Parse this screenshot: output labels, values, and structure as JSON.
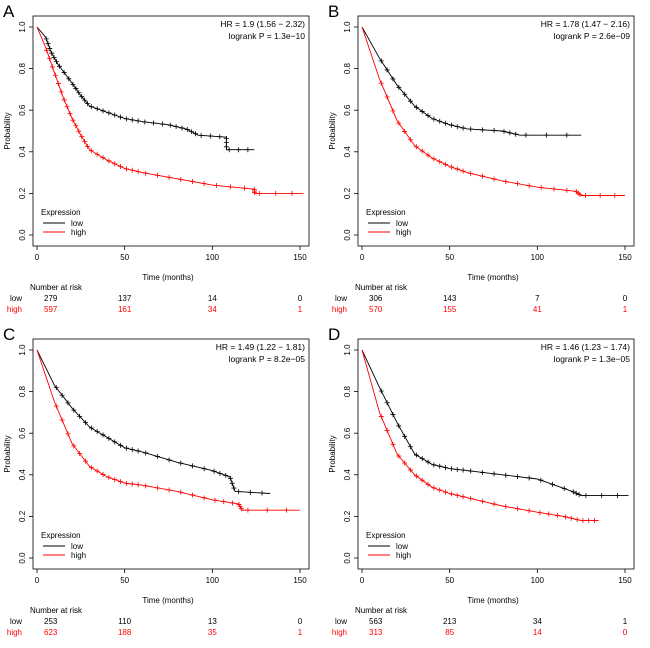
{
  "chart_data": [
    {
      "type": "line",
      "panel": "A",
      "hr_text": "HR = 1.9 (1.56 − 2.32)",
      "p_text": "logrank P = 1.3e−10",
      "xlabel": "Time (months)",
      "ylabel": "Probability",
      "xlim": [
        0,
        150
      ],
      "ylim": [
        0,
        1
      ],
      "xticks": [
        "0",
        "50",
        "100",
        "150"
      ],
      "yticks": [
        "0.0",
        "0.2",
        "0.4",
        "0.6",
        "0.8",
        "1.0"
      ],
      "legend": {
        "title": "Expression",
        "position": "bottom-left",
        "entries": [
          "low",
          "high"
        ]
      },
      "series": [
        {
          "name": "low",
          "color": "#000000",
          "points": [
            [
              0,
              1
            ],
            [
              5,
              0.95
            ],
            [
              8,
              0.88
            ],
            [
              12,
              0.82
            ],
            [
              20,
              0.73
            ],
            [
              25,
              0.67
            ],
            [
              30,
              0.62
            ],
            [
              40,
              0.59
            ],
            [
              50,
              0.56
            ],
            [
              60,
              0.545
            ],
            [
              75,
              0.53
            ],
            [
              85,
              0.51
            ],
            [
              92,
              0.48
            ],
            [
              108,
              0.47
            ],
            [
              108,
              0.41
            ],
            [
              124,
              0.41
            ]
          ]
        },
        {
          "name": "high",
          "color": "#ff0000",
          "points": [
            [
              0,
              1
            ],
            [
              5,
              0.9
            ],
            [
              10,
              0.78
            ],
            [
              15,
              0.66
            ],
            [
              20,
              0.56
            ],
            [
              25,
              0.48
            ],
            [
              30,
              0.41
            ],
            [
              40,
              0.36
            ],
            [
              50,
              0.32
            ],
            [
              60,
              0.3
            ],
            [
              80,
              0.27
            ],
            [
              100,
              0.24
            ],
            [
              124,
              0.22
            ],
            [
              124,
              0.2
            ],
            [
              152,
              0.2
            ]
          ]
        }
      ],
      "risk": {
        "title": "Number at risk",
        "low": [
          "279",
          "137",
          "14",
          "0"
        ],
        "high": [
          "597",
          "161",
          "34",
          "1"
        ]
      }
    },
    {
      "type": "line",
      "panel": "B",
      "hr_text": "HR = 1.78 (1.47 − 2.16)",
      "p_text": "logrank P = 2.6e−09",
      "xlabel": "Time (months)",
      "ylabel": "Probability",
      "xlim": [
        0,
        150
      ],
      "ylim": [
        0,
        1
      ],
      "xticks": [
        "0",
        "50",
        "100",
        "150"
      ],
      "yticks": [
        "0.0",
        "0.2",
        "0.4",
        "0.6",
        "0.8",
        "1.0"
      ],
      "legend": {
        "title": "Expression",
        "position": "bottom-left",
        "entries": [
          "low",
          "high"
        ]
      },
      "series": [
        {
          "name": "low",
          "color": "#000000",
          "points": [
            [
              0,
              1
            ],
            [
              10,
              0.85
            ],
            [
              20,
              0.72
            ],
            [
              30,
              0.62
            ],
            [
              40,
              0.56
            ],
            [
              50,
              0.53
            ],
            [
              60,
              0.51
            ],
            [
              80,
              0.5
            ],
            [
              90,
              0.48
            ],
            [
              125,
              0.48
            ]
          ]
        },
        {
          "name": "high",
          "color": "#ff0000",
          "points": [
            [
              0,
              1
            ],
            [
              10,
              0.75
            ],
            [
              20,
              0.55
            ],
            [
              30,
              0.43
            ],
            [
              40,
              0.37
            ],
            [
              50,
              0.33
            ],
            [
              60,
              0.3
            ],
            [
              80,
              0.26
            ],
            [
              100,
              0.23
            ],
            [
              122,
              0.21
            ],
            [
              125,
              0.19
            ],
            [
              150,
              0.19
            ]
          ]
        }
      ],
      "risk": {
        "title": "Number at risk",
        "low": [
          "306",
          "143",
          "7",
          "0"
        ],
        "high": [
          "570",
          "155",
          "41",
          "1"
        ]
      }
    },
    {
      "type": "line",
      "panel": "C",
      "hr_text": "HR = 1.49 (1.22 − 1.81)",
      "p_text": "logrank P = 8.2e−05",
      "xlabel": "Time (months)",
      "ylabel": "Probability",
      "xlim": [
        0,
        150
      ],
      "ylim": [
        0,
        1
      ],
      "xticks": [
        "0",
        "50",
        "100",
        "150"
      ],
      "yticks": [
        "0.0",
        "0.2",
        "0.4",
        "0.6",
        "0.8",
        "1.0"
      ],
      "legend": {
        "title": "Expression",
        "position": "bottom-left",
        "entries": [
          "low",
          "high"
        ]
      },
      "series": [
        {
          "name": "low",
          "color": "#000000",
          "points": [
            [
              0,
              1
            ],
            [
              10,
              0.83
            ],
            [
              20,
              0.72
            ],
            [
              30,
              0.63
            ],
            [
              40,
              0.58
            ],
            [
              50,
              0.53
            ],
            [
              60,
              0.51
            ],
            [
              80,
              0.46
            ],
            [
              100,
              0.42
            ],
            [
              110,
              0.39
            ],
            [
              113,
              0.32
            ],
            [
              133,
              0.31
            ]
          ]
        },
        {
          "name": "high",
          "color": "#ff0000",
          "points": [
            [
              0,
              1
            ],
            [
              10,
              0.75
            ],
            [
              20,
              0.55
            ],
            [
              30,
              0.44
            ],
            [
              40,
              0.39
            ],
            [
              50,
              0.36
            ],
            [
              60,
              0.35
            ],
            [
              80,
              0.32
            ],
            [
              100,
              0.28
            ],
            [
              115,
              0.26
            ],
            [
              117,
              0.23
            ],
            [
              150,
              0.23
            ]
          ]
        }
      ],
      "risk": {
        "title": "Number at risk",
        "low": [
          "253",
          "110",
          "13",
          "0"
        ],
        "high": [
          "623",
          "188",
          "35",
          "1"
        ]
      }
    },
    {
      "type": "line",
      "panel": "D",
      "hr_text": "HR = 1.46 (1.23 − 1.74)",
      "p_text": "logrank P = 1.3e−05",
      "xlabel": "Time (months)",
      "ylabel": "Probability",
      "xlim": [
        0,
        150
      ],
      "ylim": [
        0,
        1
      ],
      "xticks": [
        "0",
        "50",
        "100",
        "150"
      ],
      "yticks": [
        "0.0",
        "0.2",
        "0.4",
        "0.6",
        "0.8",
        "1.0"
      ],
      "legend": {
        "title": "Expression",
        "position": "bottom-left",
        "entries": [
          "low",
          "high"
        ]
      },
      "series": [
        {
          "name": "low",
          "color": "#000000",
          "points": [
            [
              0,
              1
            ],
            [
              10,
              0.82
            ],
            [
              20,
              0.65
            ],
            [
              30,
              0.5
            ],
            [
              40,
              0.45
            ],
            [
              50,
              0.43
            ],
            [
              60,
              0.42
            ],
            [
              80,
              0.4
            ],
            [
              100,
              0.38
            ],
            [
              120,
              0.32
            ],
            [
              125,
              0.3
            ],
            [
              152,
              0.3
            ]
          ]
        },
        {
          "name": "high",
          "color": "#ff0000",
          "points": [
            [
              0,
              1
            ],
            [
              10,
              0.7
            ],
            [
              20,
              0.5
            ],
            [
              30,
              0.4
            ],
            [
              40,
              0.34
            ],
            [
              50,
              0.31
            ],
            [
              60,
              0.29
            ],
            [
              80,
              0.25
            ],
            [
              100,
              0.22
            ],
            [
              115,
              0.2
            ],
            [
              125,
              0.18
            ],
            [
              135,
              0.18
            ]
          ]
        }
      ],
      "risk": {
        "title": "Number at risk",
        "low": [
          "563",
          "213",
          "34",
          "1"
        ],
        "high": [
          "313",
          "85",
          "14",
          "0"
        ]
      }
    }
  ]
}
